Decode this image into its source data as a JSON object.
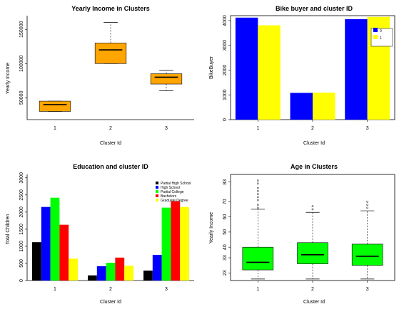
{
  "chart_data": [
    {
      "type": "boxplot",
      "title": "Yearly Income in Clusters",
      "xlabel": "Cluster Id",
      "ylabel": "Yearly Income",
      "categories": [
        "1",
        "2",
        "3"
      ],
      "ylim": [
        18000,
        170000
      ],
      "yticks": [
        50000,
        100000,
        150000
      ],
      "ytick_labels": [
        "50000",
        "100000",
        "150000"
      ],
      "color": "#FFA500",
      "boxes": [
        {
          "whislo": 30000,
          "q1": 30000,
          "med": 40000,
          "q3": 45000,
          "whishi": 45000,
          "outliers": []
        },
        {
          "whislo": 100000,
          "q1": 100000,
          "med": 120000,
          "q3": 130000,
          "whishi": 160000,
          "outliers": []
        },
        {
          "whislo": 60000,
          "q1": 70000,
          "med": 80000,
          "q3": 85000,
          "whishi": 90000,
          "outliers": []
        }
      ]
    },
    {
      "type": "bar",
      "title": "Bike buyer and cluster ID",
      "xlabel": "Cluster Id",
      "ylabel": "BikeBuyer",
      "categories": [
        "1",
        "2",
        "3"
      ],
      "ylim": [
        0,
        4200
      ],
      "yticks": [
        0,
        1000,
        2000,
        3000,
        4000
      ],
      "ytick_labels": [
        "0",
        "1000",
        "2000",
        "3000",
        "4000"
      ],
      "legend_position": "top-right",
      "series": [
        {
          "name": "0",
          "color": "#0000FF",
          "values": [
            4120,
            1080,
            4060
          ]
        },
        {
          "name": "1",
          "color": "#FFFF00",
          "values": [
            3810,
            1090,
            4150
          ]
        }
      ]
    },
    {
      "type": "bar",
      "title": "Education and cluster ID",
      "xlabel": "Cluster Id",
      "ylabel": "Total Children",
      "categories": [
        "1",
        "2",
        "3"
      ],
      "ylim": [
        0,
        3100
      ],
      "yticks": [
        0,
        500,
        1000,
        1500,
        2000,
        2500,
        3000
      ],
      "ytick_labels": [
        "0",
        "500",
        "1000",
        "1500",
        "2000",
        "2500",
        "3000"
      ],
      "legend_position": "top-right",
      "series": [
        {
          "name": "Partial High School",
          "color": "#000000",
          "values": [
            1120,
            150,
            290
          ]
        },
        {
          "name": "High School",
          "color": "#0000FF",
          "values": [
            2150,
            420,
            750
          ]
        },
        {
          "name": "Partial College",
          "color": "#00FF00",
          "values": [
            2420,
            520,
            2130
          ]
        },
        {
          "name": "Bachelors",
          "color": "#FF0000",
          "values": [
            1630,
            670,
            2320
          ]
        },
        {
          "name": "Graduate Degree",
          "color": "#FFFF00",
          "values": [
            640,
            430,
            2150
          ]
        }
      ]
    },
    {
      "type": "boxplot",
      "title": "Age in Clusters",
      "xlabel": "Cluster Id",
      "ylabel": "Yearly Income",
      "categories": [
        "1",
        "2",
        "3"
      ],
      "ylim": [
        18,
        88
      ],
      "yticks": [
        23,
        33,
        40,
        50,
        60,
        70,
        83
      ],
      "ytick_labels": [
        "23",
        "33",
        "40",
        "50",
        "60",
        "70",
        "83"
      ],
      "color": "#00FF00",
      "boxes": [
        {
          "whislo": 19,
          "q1": 25,
          "med": 30,
          "q3": 40,
          "whishi": 65,
          "outliers": [
            66,
            68,
            71,
            73,
            75,
            77,
            79,
            82,
            84
          ]
        },
        {
          "whislo": 19,
          "q1": 29,
          "med": 35,
          "q3": 43,
          "whishi": 63,
          "outliers": [
            65,
            67
          ]
        },
        {
          "whislo": 19,
          "q1": 28,
          "med": 34,
          "q3": 42,
          "whishi": 64,
          "outliers": [
            66,
            68,
            70
          ]
        }
      ]
    }
  ]
}
